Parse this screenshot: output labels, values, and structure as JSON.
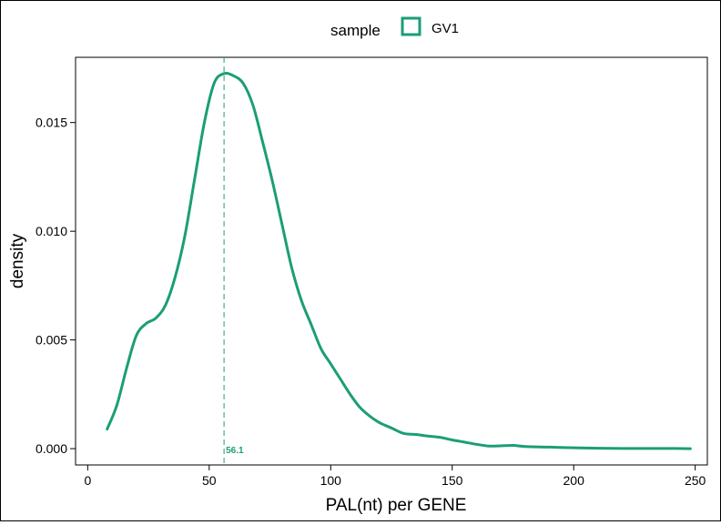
{
  "chart_data": {
    "type": "line",
    "title": "",
    "xlabel": "PAL(nt) per GENE",
    "ylabel": "density",
    "xlim": [
      -5,
      255
    ],
    "ylim": [
      -0.00075,
      0.018
    ],
    "x_ticks": [
      0,
      50,
      100,
      150,
      200,
      250
    ],
    "x_tick_labels": [
      "0",
      "50",
      "100",
      "150",
      "200",
      "250"
    ],
    "y_ticks": [
      0.0,
      0.005,
      0.01,
      0.015
    ],
    "y_tick_labels": [
      "0.000",
      "0.005",
      "0.010",
      "0.015"
    ],
    "grid": false,
    "legend": {
      "position": "top",
      "title": "sample",
      "entries": [
        {
          "label": "GV1",
          "color": "#1b9e77"
        }
      ]
    },
    "series": [
      {
        "name": "GV1",
        "color": "#1b9e77",
        "x": [
          8,
          12,
          16,
          20,
          24,
          28,
          32,
          36,
          40,
          44,
          48,
          52,
          56,
          60,
          64,
          68,
          72,
          76,
          80,
          84,
          88,
          92,
          96,
          100,
          104,
          108,
          112,
          116,
          120,
          125,
          130,
          135,
          140,
          145,
          150,
          155,
          160,
          165,
          170,
          175,
          180,
          190,
          200,
          210,
          220,
          230,
          240,
          248
        ],
        "y": [
          0.0009,
          0.002,
          0.0037,
          0.0052,
          0.00575,
          0.006,
          0.0066,
          0.0079,
          0.0098,
          0.0124,
          0.015,
          0.0168,
          0.01725,
          0.01715,
          0.0168,
          0.0158,
          0.0141,
          0.0123,
          0.0103,
          0.0083,
          0.0068,
          0.0057,
          0.0046,
          0.0039,
          0.0032,
          0.0025,
          0.0019,
          0.0015,
          0.0012,
          0.00095,
          0.0007,
          0.00065,
          0.00058,
          0.00052,
          0.0004,
          0.0003,
          0.0002,
          0.00012,
          0.00013,
          0.00015,
          0.0001,
          7e-05,
          4e-05,
          2e-05,
          1e-05,
          1e-05,
          1e-05,
          0.0
        ]
      }
    ],
    "annotations": [
      {
        "type": "vline",
        "x": 56.1,
        "label": "56.1",
        "color": "#1b9e77",
        "style": "dashed"
      }
    ]
  }
}
